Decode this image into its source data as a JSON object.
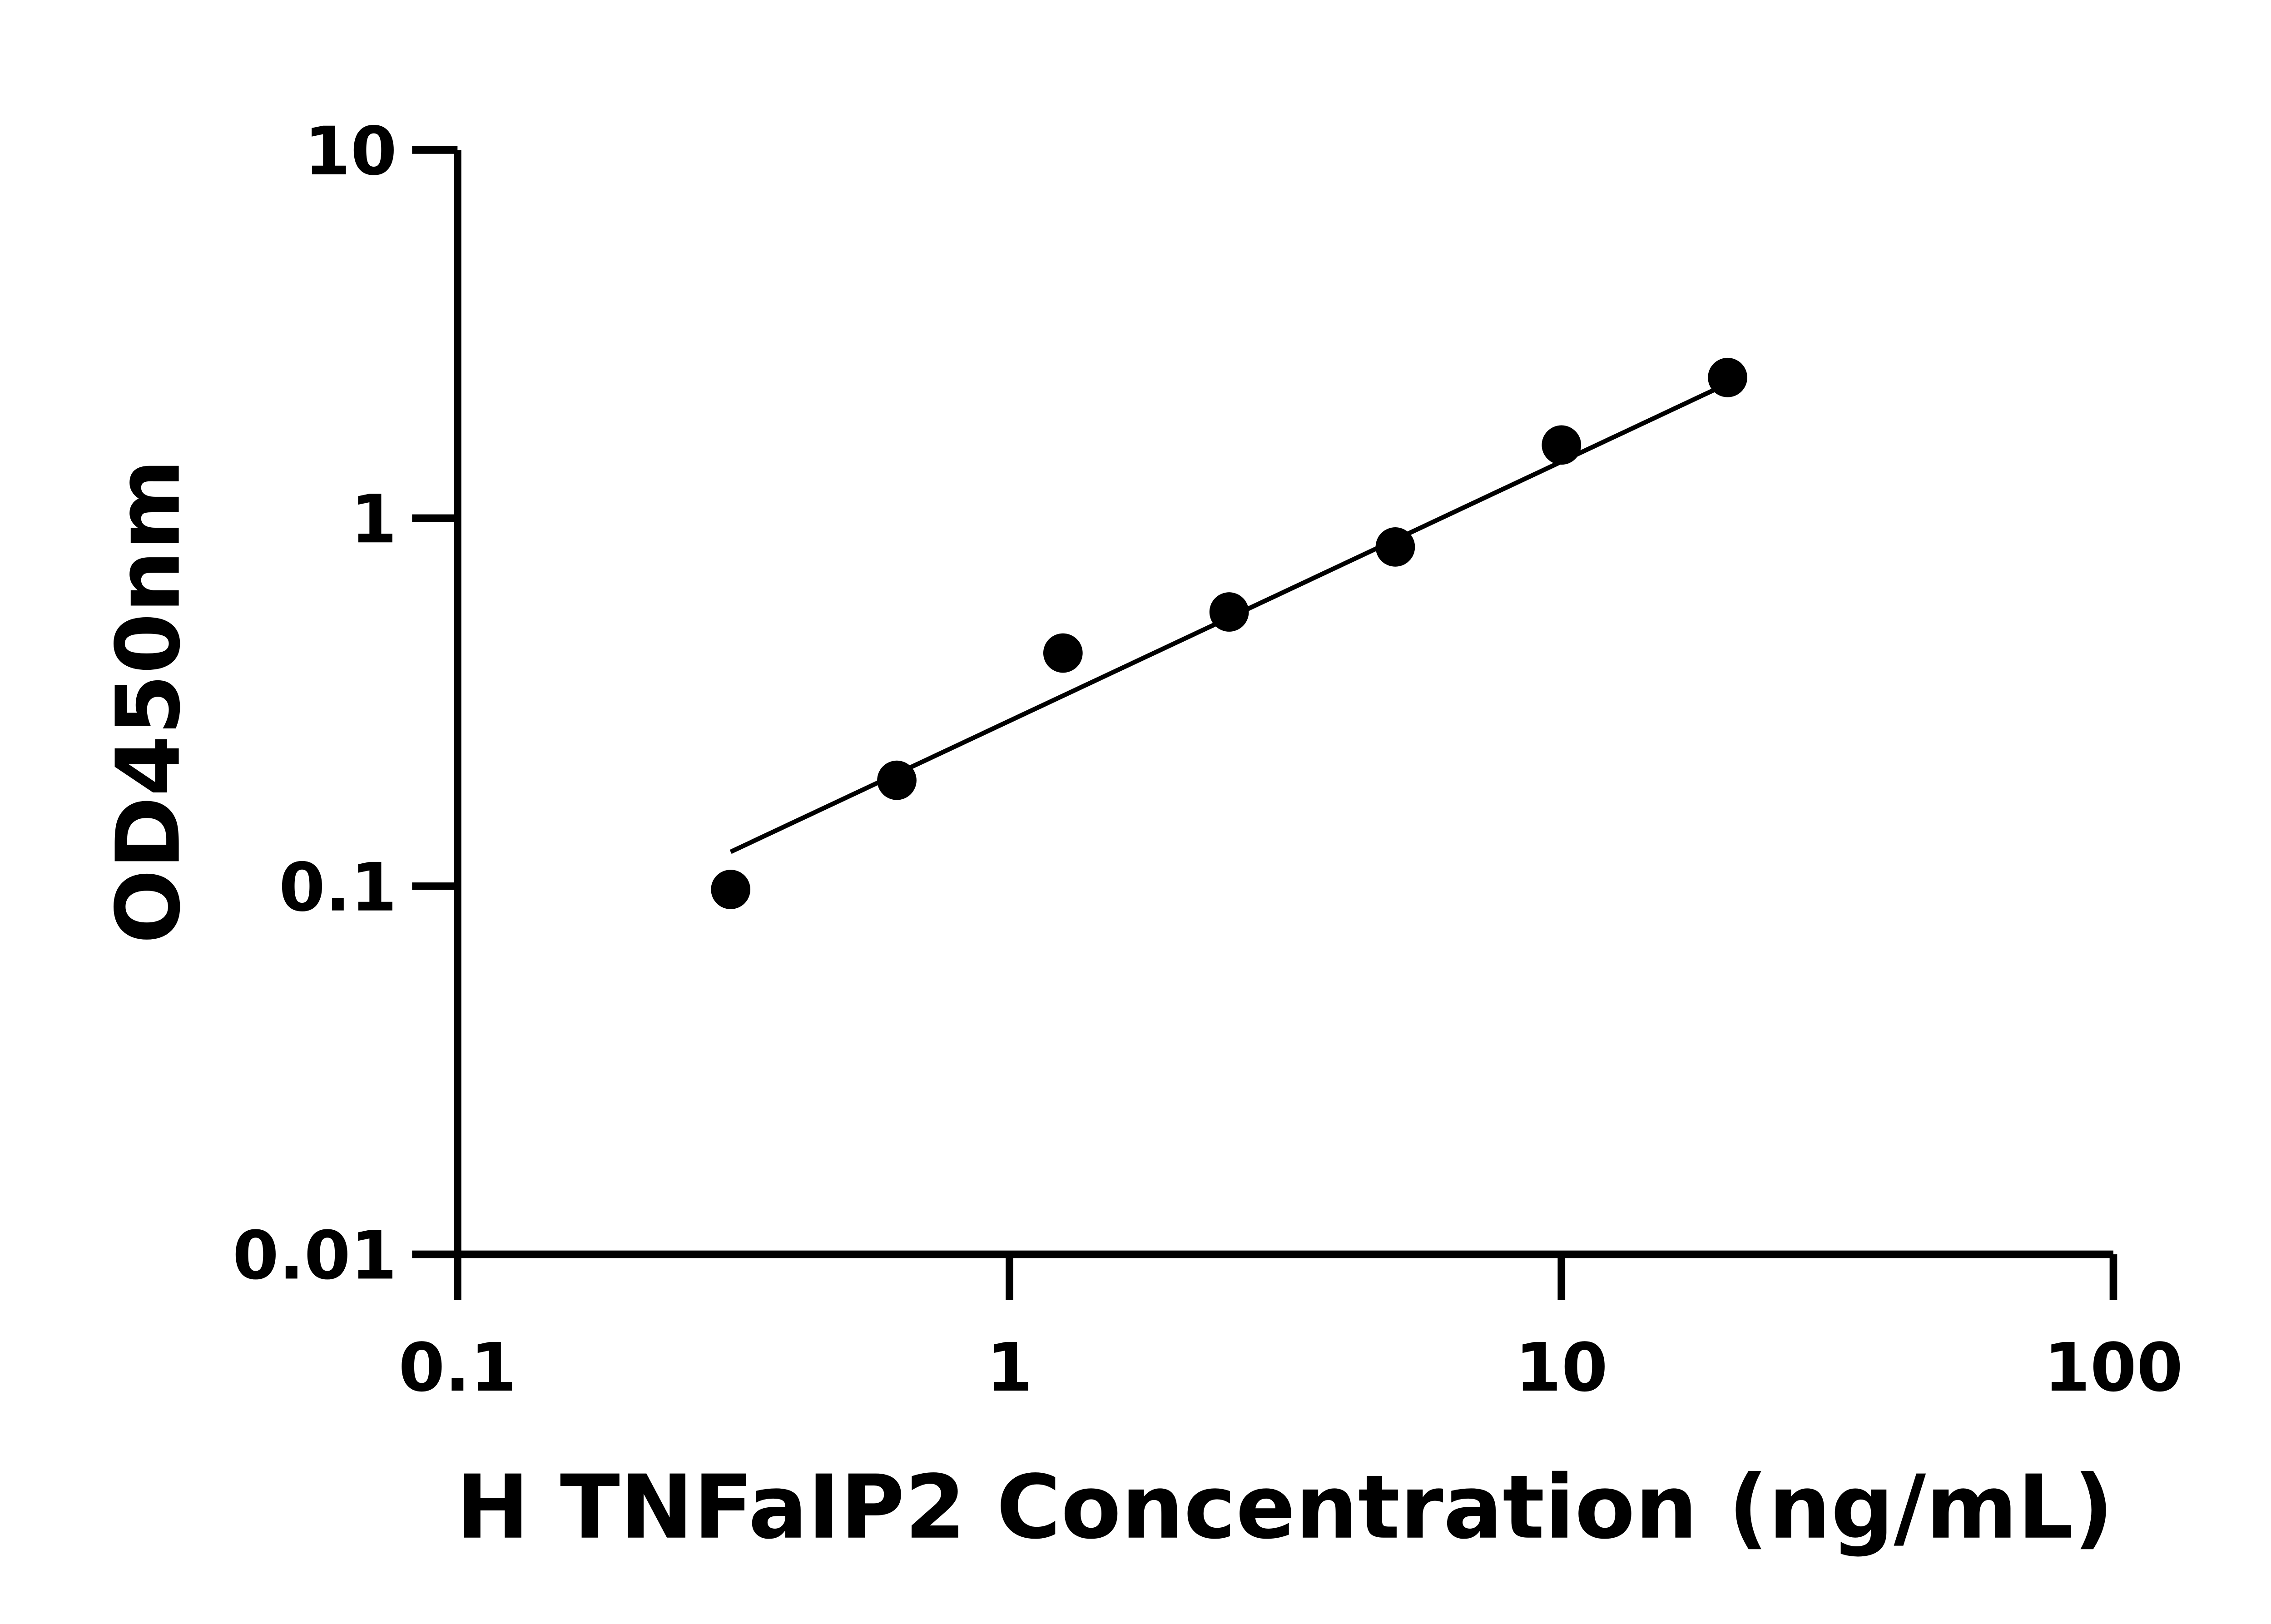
{
  "chart_data": {
    "type": "scatter",
    "title": "",
    "xlabel": "H TNFaIP2 Concentration (ng/mL)",
    "ylabel": "OD450nm",
    "x_scale": "log",
    "y_scale": "log",
    "xlim": [
      0.1,
      100
    ],
    "ylim": [
      0.01,
      10
    ],
    "x_ticks": [
      "0.1",
      "1",
      "10",
      "100"
    ],
    "y_ticks": [
      "0.01",
      "0.1",
      "1",
      "10"
    ],
    "grid": false,
    "points": {
      "x": [
        0.3125,
        0.625,
        1.25,
        2.5,
        5,
        10,
        20
      ],
      "y": [
        0.098,
        0.194,
        0.43,
        0.556,
        0.835,
        1.58,
        2.41
      ]
    },
    "fit_line": {
      "x": [
        0.3125,
        20
      ],
      "y": [
        0.124,
        2.32
      ]
    },
    "colors": {
      "points": "#000000",
      "line": "#000000",
      "axes": "#000000"
    }
  }
}
